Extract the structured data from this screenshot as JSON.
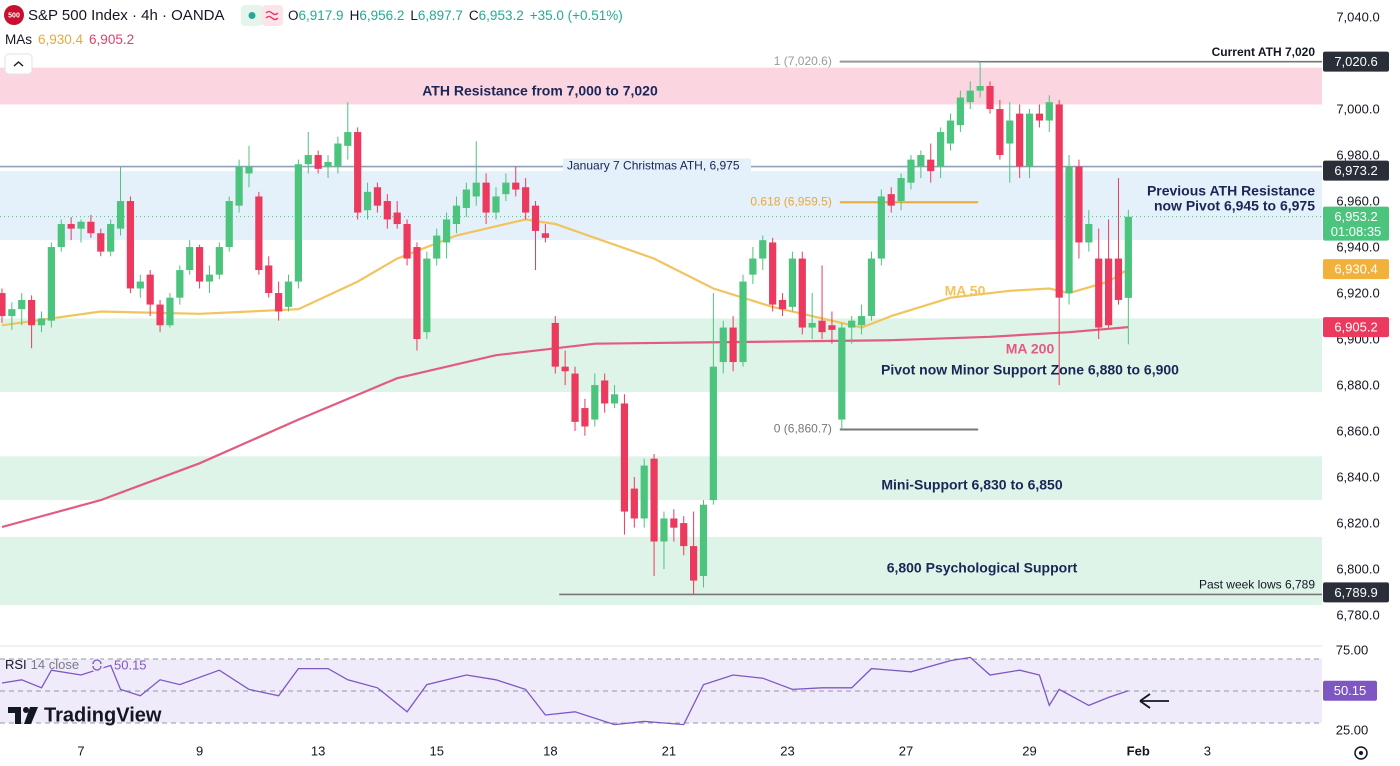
{
  "header": {
    "logo": "500",
    "title": "S&P 500 Index · 4h · OANDA",
    "ohlc": [
      {
        "key": "O",
        "value": "6,917.9"
      },
      {
        "key": "H",
        "value": "6,956.2"
      },
      {
        "key": "L",
        "value": "6,897.7"
      },
      {
        "key": "C",
        "value": "6,953.2"
      }
    ],
    "change": "+35.0 (+0.51%)",
    "mas_label": "MAs",
    "ma_values": [
      "6,930.4",
      "6,905.2"
    ],
    "watermark": "TradingView"
  },
  "chart_data": [
    {
      "type": "candlestick",
      "up_color": "#4cc47e",
      "down_color": "#ec3a5e",
      "open": [
        6920,
        6910,
        6913,
        6917,
        6906,
        6908,
        6940,
        6950,
        6948,
        6951,
        6946,
        6938,
        6948,
        6960,
        6922,
        6928,
        6915,
        6906,
        6918,
        6930,
        6940,
        6925,
        6928,
        6940,
        6958,
        6972,
        6962,
        6932,
        6920,
        6914,
        6925,
        6976,
        6980,
        6975,
        6975,
        6984,
        6990,
        6956,
        6966,
        6960,
        6955,
        6950,
        6940,
        6903,
        6935,
        6942,
        6950,
        6957,
        6962,
        6968,
        6955,
        6963,
        6968,
        6966,
        6958,
        6946,
        6907,
        6888,
        6885,
        6870,
        6865,
        6882,
        6872,
        6872,
        6835,
        6822,
        6848,
        6812,
        6822,
        6820,
        6810,
        6797,
        6830,
        6890,
        6905,
        6890,
        6928,
        6935,
        6942,
        6917,
        6914,
        6935,
        6905,
        6908,
        6906,
        6865,
        6905,
        6906,
        6910,
        6935,
        6963,
        6960,
        6968,
        6975,
        6978,
        6975,
        6985,
        6993,
        7003,
        7008,
        7010,
        7000,
        6985,
        6998,
        6975,
        6998,
        6995,
        7002,
        6920,
        6975,
        6942,
        6935,
        6935,
        6935,
        6917.9
      ],
      "high": [
        6922,
        6916,
        6920,
        6919,
        6912,
        6942,
        6952,
        6953,
        6952,
        6954,
        6948,
        6952,
        6975,
        6962,
        6928,
        6930,
        6917,
        6920,
        6932,
        6943,
        6941,
        6932,
        6942,
        6962,
        6978,
        6984,
        6964,
        6936,
        6925,
        6928,
        6978,
        6990,
        6982,
        6980,
        6988,
        7003,
        6992,
        6968,
        6968,
        6963,
        6960,
        6952,
        6942,
        6938,
        6948,
        6955,
        6962,
        6968,
        6986,
        6972,
        6966,
        6972,
        6975,
        6970,
        6960,
        6950,
        6910,
        6895,
        6888,
        6874,
        6885,
        6885,
        6880,
        6876,
        6840,
        6848,
        6850,
        6825,
        6826,
        6823,
        6825,
        6830,
        6920,
        6908,
        6910,
        6928,
        6940,
        6945,
        6944,
        6920,
        6938,
        6938,
        6920,
        6932,
        6912,
        6907,
        6910,
        6915,
        6938,
        6965,
        6966,
        6972,
        6980,
        6982,
        6985,
        6992,
        6998,
        7008,
        7012,
        7020.6,
        7012,
        7004,
        7003,
        7002,
        7000,
        7002,
        7006,
        7004,
        6980,
        6978,
        6956,
        6948,
        6952,
        6970,
        6956.2
      ],
      "low": [
        6907,
        6904,
        6906,
        6896,
        6903,
        6905,
        6938,
        6943,
        6942,
        6944,
        6936,
        6936,
        6945,
        6920,
        6918,
        6910,
        6903,
        6905,
        6915,
        6928,
        6922,
        6920,
        6926,
        6938,
        6955,
        6966,
        6928,
        6918,
        6908,
        6912,
        6922,
        6972,
        6972,
        6970,
        6972,
        6978,
        6952,
        6952,
        6955,
        6948,
        6948,
        6932,
        6895,
        6900,
        6932,
        6935,
        6946,
        6953,
        6958,
        6950,
        6952,
        6960,
        6962,
        6952,
        6930,
        6942,
        6885,
        6880,
        6860,
        6858,
        6862,
        6868,
        6870,
        6815,
        6818,
        6818,
        6797,
        6800,
        6812,
        6806,
        6789,
        6792,
        6828,
        6885,
        6886,
        6888,
        6924,
        6930,
        6912,
        6910,
        6912,
        6902,
        6900,
        6900,
        6898,
        6860.7,
        6898,
        6902,
        6908,
        6932,
        6955,
        6956,
        6965,
        6970,
        6968,
        6970,
        6982,
        6990,
        7000,
        7005,
        6998,
        6978,
        6968,
        6970,
        6970,
        6992,
        6990,
        6880,
        6915,
        6935,
        6938,
        6900,
        6905,
        6915,
        6897.7
      ],
      "close": [
        6910,
        6913,
        6917,
        6906,
        6909,
        6940,
        6950,
        6948,
        6951,
        6946,
        6938,
        6950,
        6960,
        6922,
        6925,
        6915,
        6906,
        6918,
        6930,
        6940,
        6925,
        6928,
        6940,
        6960,
        6975,
        6975,
        6930,
        6920,
        6912,
        6925,
        6976,
        6980,
        6974,
        6977,
        6985,
        6990,
        6955,
        6964,
        6958,
        6952,
        6950,
        6935,
        6900,
        6935,
        6945,
        6952,
        6958,
        6965,
        6968,
        6955,
        6962,
        6968,
        6965,
        6955,
        6947,
        6944,
        6888,
        6886,
        6864,
        6862,
        6880,
        6872,
        6876,
        6825,
        6822,
        6845,
        6812,
        6822,
        6818,
        6810,
        6795,
        6828,
        6888,
        6905,
        6890,
        6925,
        6935,
        6943,
        6915,
        6913,
        6935,
        6905,
        6907,
        6903,
        6904,
        6905,
        6908,
        6910,
        6935,
        6962,
        6958,
        6970,
        6978,
        6980,
        6973,
        6990,
        6995,
        7005,
        7008,
        7010,
        7000,
        6980,
        6995,
        6975,
        6998,
        6995,
        7003,
        6918,
        6975,
        6942,
        6950,
        6905,
        6906,
        6917,
        6953.2
      ],
      "xlim": [
        -0.2,
        133.6
      ],
      "xticks": [
        {
          "value": 8,
          "label": "7"
        },
        {
          "value": 20,
          "label": "9"
        },
        {
          "value": 32,
          "label": "13"
        },
        {
          "value": 44,
          "label": "15"
        },
        {
          "value": 55.5,
          "label": "18"
        },
        {
          "value": 67.5,
          "label": "21"
        },
        {
          "value": 79.5,
          "label": "23"
        },
        {
          "value": 91.5,
          "label": "27"
        },
        {
          "value": 104,
          "label": "29"
        },
        {
          "value": 115,
          "label": "Feb"
        },
        {
          "value": 122,
          "label": "3"
        }
      ],
      "ylim": [
        6767,
        7047.4
      ],
      "yticks": [
        {
          "value": 7040,
          "label": "7,040.0"
        },
        {
          "value": 7000,
          "label": "7,000.0"
        },
        {
          "value": 6980,
          "label": "6,980.0"
        },
        {
          "value": 6960,
          "label": "6,960.0"
        },
        {
          "value": 6940,
          "label": "6,940.0"
        },
        {
          "value": 6920,
          "label": "6,920.0"
        },
        {
          "value": 6900,
          "label": "6,900.0"
        },
        {
          "value": 6880,
          "label": "6,880.0"
        },
        {
          "value": 6860,
          "label": "6,860.0"
        },
        {
          "value": 6840,
          "label": "6,840.0"
        },
        {
          "value": 6820,
          "label": "6,820.0"
        },
        {
          "value": 6800,
          "label": "6,800.0"
        },
        {
          "value": 6780,
          "label": "6,780.0"
        }
      ],
      "overlays": [
        {
          "name": "MA 50",
          "color": "#f2c45e",
          "x": [
            0,
            10,
            20,
            30,
            36,
            40,
            46,
            53,
            56,
            60,
            66,
            72,
            78,
            84,
            87,
            90,
            96,
            102,
            106,
            108,
            112,
            114
          ],
          "values": [
            6906,
            6912,
            6911,
            6913,
            6925,
            6935,
            6945,
            6952,
            6950,
            6944,
            6935,
            6922,
            6914,
            6908,
            6905,
            6910,
            6918,
            6921,
            6922,
            6920,
            6925,
            6930.4
          ]
        },
        {
          "name": "MA 200",
          "color": "#e45b80",
          "x": [
            0,
            10,
            20,
            30,
            40,
            50,
            60,
            70,
            80,
            90,
            100,
            108,
            114
          ],
          "values": [
            6818.3,
            6830,
            6846,
            6865,
            6883,
            6893,
            6898,
            6898.5,
            6899,
            6899.5,
            6901,
            6903,
            6905.2
          ]
        }
      ],
      "zones": [
        {
          "from": 7002,
          "to": 7018,
          "color": "#fbd6e0",
          "label": [
            "ATH Resistance from 7,000 to 7,020"
          ]
        },
        {
          "from": 6943,
          "to": 6973,
          "color": "#e4f0fa",
          "label": [
            "Previous ATH Resistance",
            "now Pivot 6,945 to 6,975"
          ]
        },
        {
          "from": 6877,
          "to": 6909,
          "color": "#def4e8",
          "label": [
            "Pivot now Minor Support Zone 6,880 to 6,900"
          ]
        },
        {
          "from": 6830,
          "to": 6849,
          "color": "#def4e8",
          "label": [
            "Mini-Support 6,830 to 6,850"
          ]
        },
        {
          "from": 6784.4,
          "to": 6814,
          "color": "#def4e8",
          "label": [
            "6,800 Psychological Support"
          ]
        }
      ],
      "levels": [
        {
          "value": 6975,
          "from_x": -0.2,
          "color": "#8ea3bb",
          "label": "January 7 Christmas ATH, 6,975"
        },
        {
          "value": 7020.6,
          "from_x": 84.8,
          "color": "#777777",
          "label": "Current ATH 7,020"
        },
        {
          "value": 6789,
          "from_x": 56.4,
          "color": "#777777",
          "label": "Past week lows 6,789"
        }
      ],
      "fib_x": [
        84.8,
        98.8
      ],
      "fib_levels": [
        {
          "value": 7020.6,
          "color": "#9a9a9a",
          "label": "1 (7,020.6)"
        },
        {
          "value": 6959.5,
          "color": "#e8a93b",
          "label": "0.618 (6,959.5)"
        },
        {
          "value": 6860.7,
          "color": "#777777",
          "label": "0 (6,860.7)"
        }
      ],
      "price_labels": [
        {
          "value": 7020.6,
          "label": "7,020.6",
          "color": "#2a2e39"
        },
        {
          "value": 6973.2,
          "label": "6,973.2",
          "color": "#2a2e39"
        },
        {
          "value": 6953.2,
          "label": "6,953.2",
          "sub": "01:08:35",
          "color": "#4cc47e"
        },
        {
          "value": 6930.4,
          "label": "6,930.4",
          "color": "#f2b13a"
        },
        {
          "value": 6905.2,
          "label": "6,905.2",
          "color": "#ec3a5e"
        },
        {
          "value": 6789.9,
          "label": "6,789.9",
          "color": "#2a2e39"
        }
      ]
    },
    {
      "type": "line",
      "title": "RSI",
      "params": "14 close",
      "color": "#7e57c2",
      "band": [
        30,
        70
      ],
      "midline": 50,
      "band_color": "#f0ebfa",
      "x": [
        0,
        2,
        4,
        5,
        8,
        11,
        12,
        14,
        16,
        18,
        22,
        25,
        28,
        30,
        33,
        35,
        38,
        41,
        43,
        47,
        50,
        53,
        55,
        58,
        62,
        65,
        69,
        71,
        74,
        77,
        80,
        83,
        86,
        88,
        92,
        96,
        98,
        100,
        103,
        105,
        106,
        107,
        110,
        112,
        114
      ],
      "values": [
        55,
        57,
        52,
        63,
        60,
        66,
        51,
        47,
        57,
        54,
        63,
        51,
        47,
        64,
        64,
        57,
        52,
        37,
        54,
        60,
        57,
        51,
        35,
        37,
        29,
        31,
        29,
        54,
        60,
        58,
        51,
        52,
        52,
        64,
        62,
        69,
        71,
        60,
        63,
        60,
        41,
        51,
        41,
        46,
        50.15
      ],
      "ylim": [
        19.4,
        76.9
      ],
      "yticks": [
        {
          "value": 75,
          "label": "75.00"
        },
        {
          "value": 25,
          "label": "25.00"
        }
      ]
    }
  ]
}
